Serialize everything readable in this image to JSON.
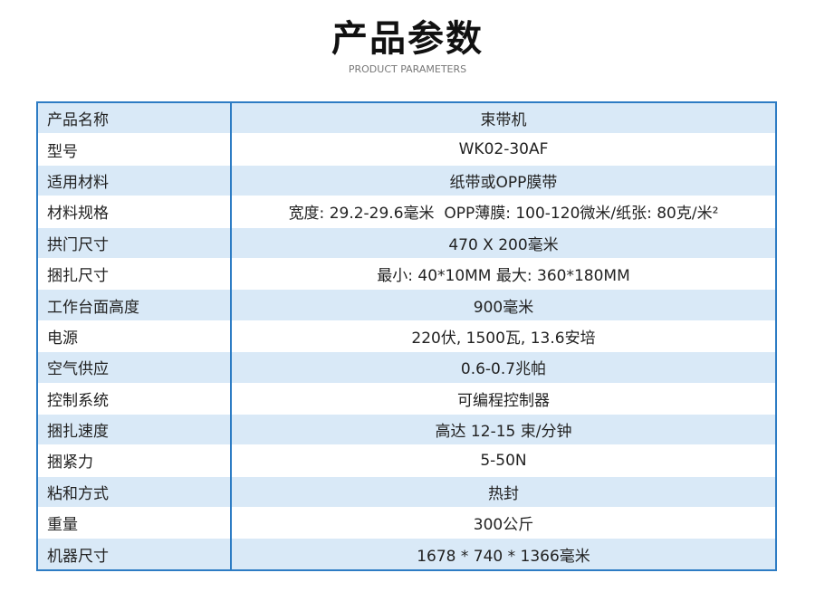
{
  "header": {
    "title": "产品参数",
    "subtitle": "PRODUCT PARAMETERS"
  },
  "table": {
    "rows": [
      [
        "产品名称",
        "束带机"
      ],
      [
        "型号",
        "WK02-30AF"
      ],
      [
        "适用材料",
        "纸带或OPP膜带"
      ],
      [
        "材料规格",
        "宽度: 29.2-29.6毫米  OPP薄膜: 100-120微米/纸张: 80克/米²"
      ],
      [
        "拱门尺寸",
        "470 X 200毫米"
      ],
      [
        "捆扎尺寸",
        "最小: 40*10MM 最大: 360*180MM"
      ],
      [
        "工作台面高度",
        "900毫米"
      ],
      [
        "电源",
        "220伏, 1500瓦, 13.6安培"
      ],
      [
        "空气供应",
        "0.6-0.7兆帕"
      ],
      [
        "控制系统",
        "可编程控制器"
      ],
      [
        "捆扎速度",
        "高达 12-15 束/分钟"
      ],
      [
        "捆紧力",
        "5-50N"
      ],
      [
        "粘和方式",
        "热封"
      ],
      [
        "重量",
        "300公斤"
      ],
      [
        "机器尺寸",
        "1678 * 740 * 1366毫米"
      ]
    ]
  }
}
